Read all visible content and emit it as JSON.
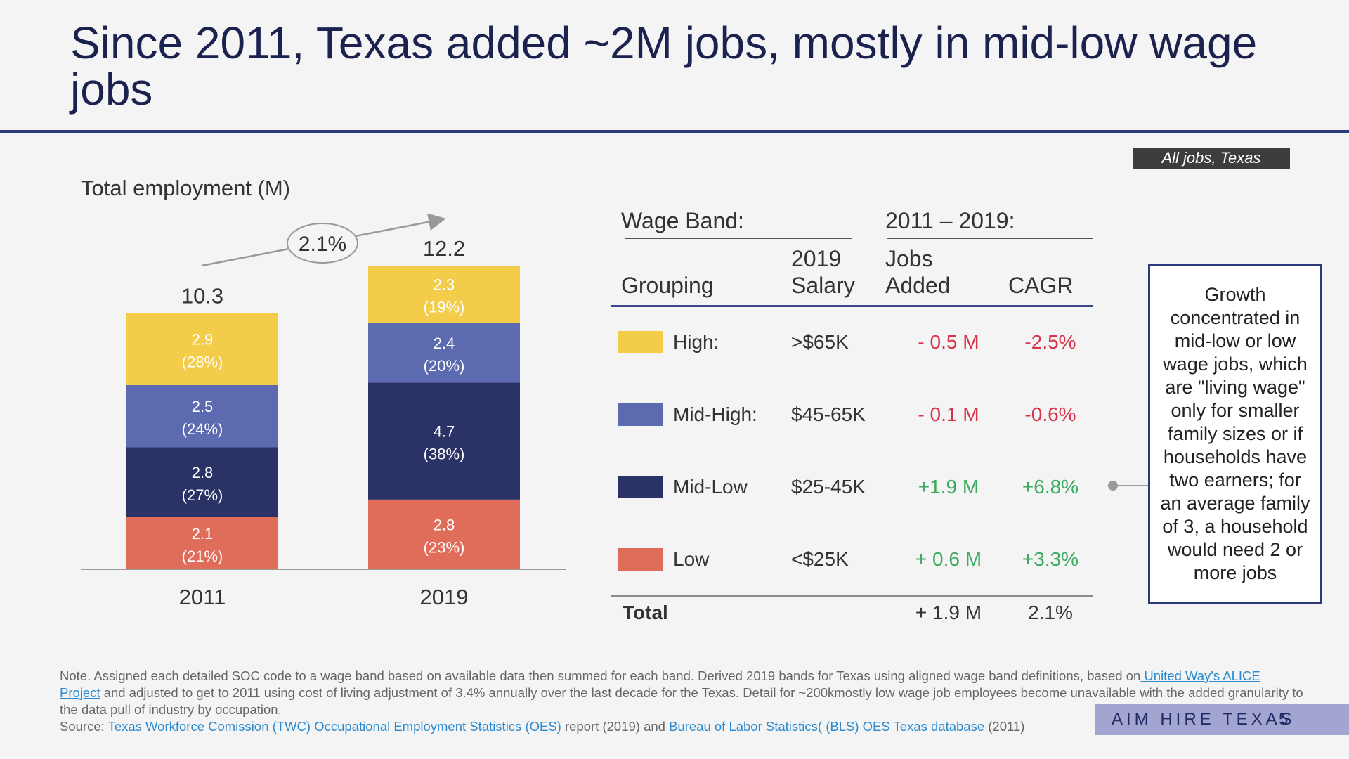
{
  "title": "Since 2011, Texas added ~2M jobs, mostly in mid-low wage jobs",
  "tag": "All jobs, Texas",
  "employment_label": "Total employment (M)",
  "chart_data": {
    "type": "bar",
    "stacked": true,
    "title": "Total employment (M)",
    "categories": [
      "2011",
      "2019"
    ],
    "series": [
      {
        "name": "Low",
        "color": "#e06c5a",
        "values": [
          2.1,
          2.8
        ],
        "labels": [
          "(21%)",
          "(23%)"
        ]
      },
      {
        "name": "Mid-Low",
        "color": "#2b3366",
        "values": [
          2.8,
          4.7
        ],
        "labels": [
          "(27%)",
          "(38%)"
        ]
      },
      {
        "name": "Mid-High",
        "color": "#5c6bb0",
        "values": [
          2.5,
          2.4
        ],
        "labels": [
          "(24%)",
          "(20%)"
        ]
      },
      {
        "name": "High",
        "color": "#f3cc4a",
        "values": [
          2.9,
          2.3
        ],
        "labels": [
          "(28%)",
          "(19%)"
        ]
      }
    ],
    "totals": [
      "10.3",
      "12.2"
    ],
    "cagr_annotation": "2.1%",
    "ylim": [
      0,
      12.2
    ]
  },
  "table": {
    "header_left": "Wage Band:",
    "header_right": "2011 – 2019:",
    "col_grouping": "Grouping",
    "col_salary_1": "2019",
    "col_salary_2": "Salary",
    "col_jobs_1": "Jobs",
    "col_jobs_2": "Added",
    "col_cagr": "CAGR",
    "rows": [
      {
        "group": "High:",
        "salary": ">$65K",
        "jobs": "- 0.5 M",
        "cagr": "-2.5%",
        "color": "#f3cc4a",
        "trend": "neg"
      },
      {
        "group": "Mid-High:",
        "salary": "$45-65K",
        "jobs": "- 0.1 M",
        "cagr": "-0.6%",
        "color": "#5c6bb0",
        "trend": "neg"
      },
      {
        "group": "Mid-Low",
        "salary": "$25-45K",
        "jobs": "+1.9 M",
        "cagr": "+6.8%",
        "color": "#2b3366",
        "trend": "pos"
      },
      {
        "group": "Low",
        "salary": "<$25K",
        "jobs": "+ 0.6 M",
        "cagr": "+3.3%",
        "color": "#e06c5a",
        "trend": "pos"
      }
    ],
    "total_label": "Total",
    "total_jobs": "+ 1.9 M",
    "total_cagr": "2.1%"
  },
  "callout": "Growth concentrated in mid-low or low wage jobs, which are \"living wage\" only for smaller family sizes or if households have two earners; for an average family of 3, a household would need 2 or more jobs",
  "note": {
    "part1": "Note. Assigned each detailed SOC code to a wage band based on available data then summed for each band. Derived 2019 bands for Texas using aligned wage band definitions, based on",
    "link1": " United Way's ALICE Project",
    "part2": " and adjusted to get to 2011 using cost of living adjustment of 3.4% annually over the last decade for the Texas. Detail for ~200kmostly low wage job employees become unavailable with the added granularity to the data pull of industry by occupation.",
    "source_label": "Source: ",
    "link2": "Texas Workforce Comission (TWC) Occupational Employment Statistics (OES)",
    "part3": " report (2019) and ",
    "link3": "Bureau of Labor Statistics( (BLS) OES Texas database",
    "part4": " (2011)"
  },
  "footer": {
    "brand": "AIM HIRE TEXAS",
    "page": "5"
  }
}
